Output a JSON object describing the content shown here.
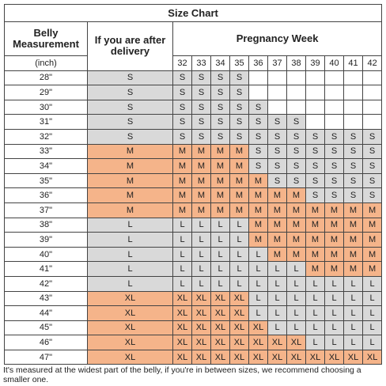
{
  "header": {
    "title": "Size Chart",
    "col1": "Belly Measurement",
    "col2": "If you are after delivery",
    "col3": "Pregnancy Week",
    "unit": "(inch)"
  },
  "weeks": [
    32,
    33,
    34,
    35,
    36,
    37,
    38,
    39,
    40,
    41,
    42
  ],
  "rows": [
    {
      "belly": "28\"",
      "after": "S",
      "sizes": [
        "S",
        "S",
        "S",
        "S",
        null,
        null,
        null,
        null,
        null,
        null,
        null
      ]
    },
    {
      "belly": "29\"",
      "after": "S",
      "sizes": [
        "S",
        "S",
        "S",
        "S",
        null,
        null,
        null,
        null,
        null,
        null,
        null
      ]
    },
    {
      "belly": "30\"",
      "after": "S",
      "sizes": [
        "S",
        "S",
        "S",
        "S",
        "S",
        null,
        null,
        null,
        null,
        null,
        null
      ]
    },
    {
      "belly": "31\"",
      "after": "S",
      "sizes": [
        "S",
        "S",
        "S",
        "S",
        "S",
        "S",
        "S",
        null,
        null,
        null,
        null
      ]
    },
    {
      "belly": "32\"",
      "after": "S",
      "sizes": [
        "S",
        "S",
        "S",
        "S",
        "S",
        "S",
        "S",
        "S",
        "S",
        "S",
        "S"
      ]
    },
    {
      "belly": "33\"",
      "after": "M",
      "sizes": [
        "M",
        "M",
        "M",
        "M",
        "S",
        "S",
        "S",
        "S",
        "S",
        "S",
        "S"
      ]
    },
    {
      "belly": "34\"",
      "after": "M",
      "sizes": [
        "M",
        "M",
        "M",
        "M",
        "S",
        "S",
        "S",
        "S",
        "S",
        "S",
        "S"
      ]
    },
    {
      "belly": "35\"",
      "after": "M",
      "sizes": [
        "M",
        "M",
        "M",
        "M",
        "M",
        "S",
        "S",
        "S",
        "S",
        "S",
        "S"
      ]
    },
    {
      "belly": "36\"",
      "after": "M",
      "sizes": [
        "M",
        "M",
        "M",
        "M",
        "M",
        "M",
        "M",
        "S",
        "S",
        "S",
        "S"
      ]
    },
    {
      "belly": "37\"",
      "after": "M",
      "sizes": [
        "M",
        "M",
        "M",
        "M",
        "M",
        "M",
        "M",
        "M",
        "M",
        "M",
        "M"
      ]
    },
    {
      "belly": "38\"",
      "after": "L",
      "sizes": [
        "L",
        "L",
        "L",
        "L",
        "M",
        "M",
        "M",
        "M",
        "M",
        "M",
        "M"
      ]
    },
    {
      "belly": "39\"",
      "after": "L",
      "sizes": [
        "L",
        "L",
        "L",
        "L",
        "M",
        "M",
        "M",
        "M",
        "M",
        "M",
        "M"
      ]
    },
    {
      "belly": "40\"",
      "after": "L",
      "sizes": [
        "L",
        "L",
        "L",
        "L",
        "L",
        "M",
        "M",
        "M",
        "M",
        "M",
        "M"
      ]
    },
    {
      "belly": "41\"",
      "after": "L",
      "sizes": [
        "L",
        "L",
        "L",
        "L",
        "L",
        "L",
        "L",
        "M",
        "M",
        "M",
        "M"
      ]
    },
    {
      "belly": "42\"",
      "after": "L",
      "sizes": [
        "L",
        "L",
        "L",
        "L",
        "L",
        "L",
        "L",
        "L",
        "L",
        "L",
        "L"
      ]
    },
    {
      "belly": "43\"",
      "after": "XL",
      "sizes": [
        "XL",
        "XL",
        "XL",
        "XL",
        "L",
        "L",
        "L",
        "L",
        "L",
        "L",
        "L"
      ]
    },
    {
      "belly": "44\"",
      "after": "XL",
      "sizes": [
        "XL",
        "XL",
        "XL",
        "XL",
        "L",
        "L",
        "L",
        "L",
        "L",
        "L",
        "L"
      ]
    },
    {
      "belly": "45\"",
      "after": "XL",
      "sizes": [
        "XL",
        "XL",
        "XL",
        "XL",
        "XL",
        "L",
        "L",
        "L",
        "L",
        "L",
        "L"
      ]
    },
    {
      "belly": "46\"",
      "after": "XL",
      "sizes": [
        "XL",
        "XL",
        "XL",
        "XL",
        "XL",
        "XL",
        "XL",
        "L",
        "L",
        "L",
        "L"
      ]
    },
    {
      "belly": "47\"",
      "after": "XL",
      "sizes": [
        "XL",
        "XL",
        "XL",
        "XL",
        "XL",
        "XL",
        "XL",
        "XL",
        "XL",
        "XL",
        "XL"
      ]
    }
  ],
  "footer": "It's measured at the widest part of the belly, if you're in between sizes, we recommend choosing a smaller one."
}
